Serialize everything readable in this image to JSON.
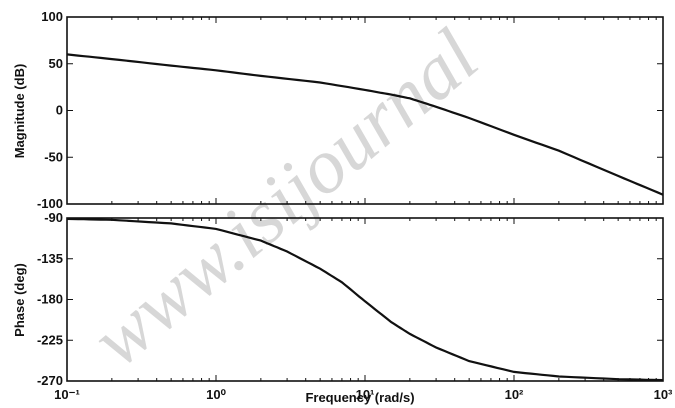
{
  "chart_data": [
    {
      "type": "line",
      "name": "magnitude",
      "ylabel": "Magnitude (dB)",
      "xscale": "log",
      "xlim": [
        0.1,
        1000
      ],
      "ylim": [
        -100,
        100
      ],
      "yticks": [
        100,
        50,
        0,
        -50,
        -100
      ],
      "ytick_labels": [
        "100",
        "50",
        "0",
        "-50",
        "-100"
      ],
      "grid": false,
      "x": [
        0.1,
        0.2,
        0.5,
        1,
        2,
        5,
        10,
        15,
        20,
        30,
        50,
        100,
        200,
        500,
        1000
      ],
      "y": [
        60,
        55,
        48,
        43,
        37,
        30,
        22,
        17,
        13,
        4,
        -8,
        -26,
        -43,
        -70,
        -90
      ]
    },
    {
      "type": "line",
      "name": "phase",
      "ylabel": "Phase (deg)",
      "xlabel": "Frequency (rad/s)",
      "xscale": "log",
      "xlim": [
        0.1,
        1000
      ],
      "ylim": [
        -270,
        -90
      ],
      "yticks": [
        -90,
        -135,
        -180,
        -225,
        -270
      ],
      "ytick_labels": [
        "-90",
        "-135",
        "-180",
        "-225",
        "-270"
      ],
      "xtick_labels": [
        "10⁻¹",
        "10⁰",
        "10¹",
        "10²",
        "10³"
      ],
      "grid": false,
      "x": [
        0.1,
        0.2,
        0.5,
        1,
        2,
        3,
        5,
        7,
        10,
        15,
        20,
        30,
        50,
        100,
        200,
        500,
        1000
      ],
      "y": [
        -91,
        -92,
        -96,
        -102,
        -115,
        -127,
        -146,
        -161,
        -182,
        -205,
        -218,
        -233,
        -248,
        -260,
        -265,
        -268,
        -269
      ]
    }
  ],
  "watermark": "www.isijournal"
}
